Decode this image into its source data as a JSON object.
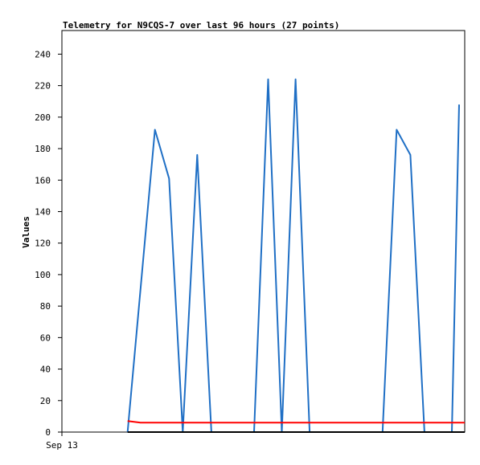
{
  "chart_data": {
    "type": "line",
    "title": "Telemetry for N9CQS-7 over last 96 hours (27 points)",
    "xlabel": "",
    "ylabel": "Values",
    "x_tick_labels": [
      "Sep 13"
    ],
    "y_ticks": [
      0,
      20,
      40,
      60,
      80,
      100,
      120,
      140,
      160,
      180,
      200,
      220,
      240
    ],
    "xlim": [
      0,
      100
    ],
    "ylim": [
      0,
      255
    ],
    "grid": false,
    "series": [
      {
        "color": "#1f6fc5",
        "x": [
          16.3,
          23.1,
          26.6,
          30.0,
          33.6,
          37.1,
          40.6,
          47.7,
          51.2,
          54.6,
          58.0,
          61.5,
          79.6,
          83.1,
          86.5,
          90.0,
          96.8,
          98.6
        ],
        "values": [
          0,
          192,
          161,
          0,
          176,
          0,
          0,
          0,
          224,
          0,
          224,
          0,
          0,
          192,
          176,
          0,
          0,
          208
        ]
      },
      {
        "color": "#ff0000",
        "x": [
          16.3,
          19.5,
          100
        ],
        "values": [
          7,
          6,
          6
        ]
      },
      {
        "color": "#000000",
        "x": [
          16.3,
          100
        ],
        "values": [
          0,
          0
        ]
      }
    ]
  }
}
